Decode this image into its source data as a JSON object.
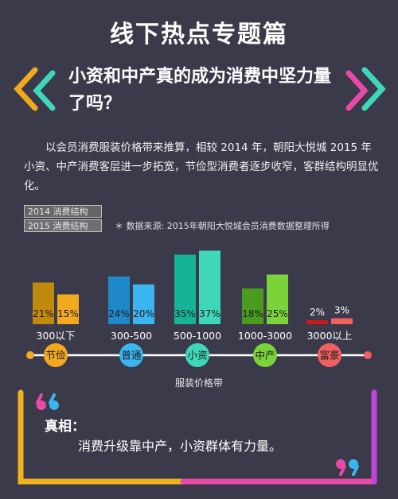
{
  "header": {
    "title": "线下热点专题篇",
    "subtitle": "小资和中产真的成为消费中坚力量了吗？"
  },
  "intro_text": "以会员消费服装价格带来推算，相较 2014 年，朝阳大悦城 2015 年小资、中产消费客层进一步拓宽，节俭型消费者逐步收窄，客群结构明显优化。",
  "chart_data": {
    "type": "bar",
    "categories": [
      "300以下",
      "300-500",
      "500-1000",
      "1000-3000",
      "3000以上"
    ],
    "segments": [
      "节俭",
      "普通",
      "小资",
      "中产",
      "富豪"
    ],
    "series": [
      {
        "name": "2014 消费结构",
        "values": [
          21,
          24,
          35,
          18,
          2
        ]
      },
      {
        "name": "2015 消费结构",
        "values": [
          15,
          20,
          37,
          25,
          3
        ]
      }
    ],
    "value_suffix": "%",
    "xlabel": "服装价格带",
    "source_note": "＊ 数据来源: 2015年朝阳大悦城会员消费数据整理所得",
    "ylim": [
      0,
      40
    ],
    "colors_2014": [
      "#c08a0e",
      "#1e88c8",
      "#15b496",
      "#4a9c1e",
      "#d01818"
    ],
    "colors_2015": [
      "#f2a91e",
      "#3cb4f0",
      "#3ed8b8",
      "#7bd33a",
      "#f06060"
    ],
    "segment_colors": [
      "#f2a91e",
      "#3cb4f0",
      "#3ed8b8",
      "#7bd33a",
      "#f06060"
    ]
  },
  "conclusion": {
    "label": "真相：",
    "text": "消费升级靠中产，小资群体有力量。"
  },
  "colors": {
    "background": "#3a3a4a",
    "frame_left": "#f2b21e",
    "frame_bottom": "#e84aa8",
    "frame_right": "#c046d8"
  }
}
